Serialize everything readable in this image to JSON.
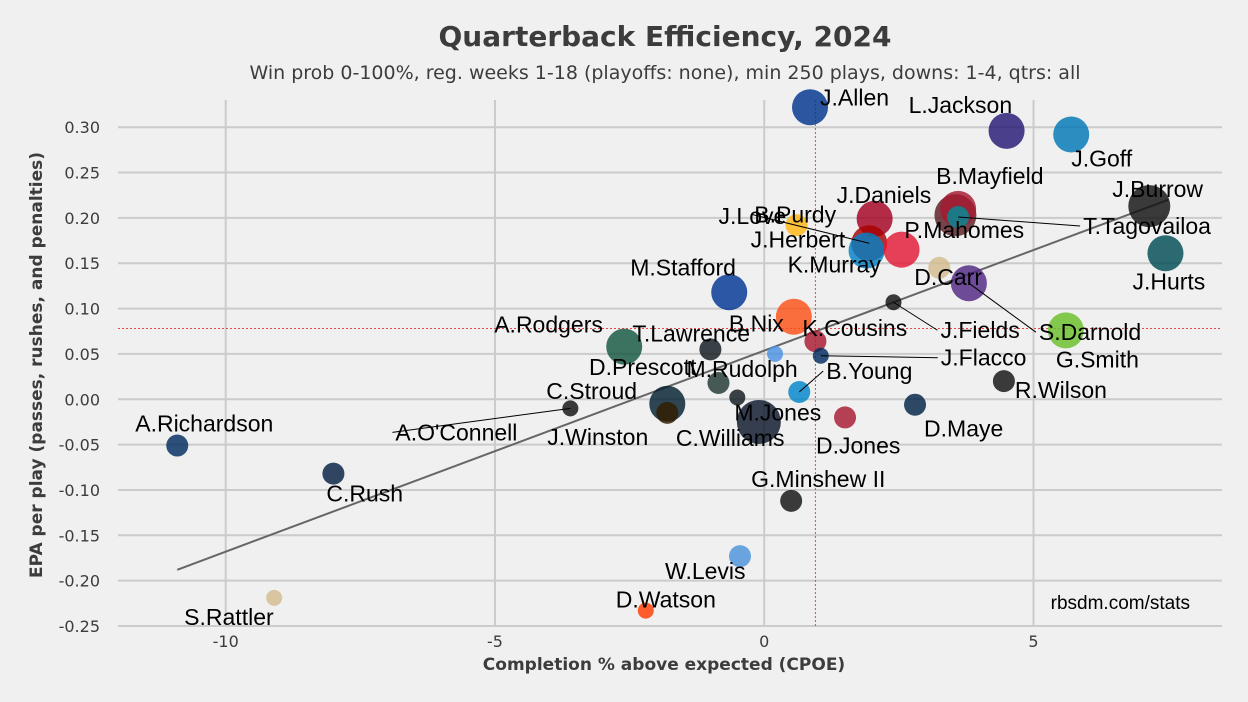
{
  "chart_data": {
    "type": "scatter",
    "title": "Quarterback Efficiency, 2024",
    "subtitle": "Win prob 0-100%, reg. weeks 1-18 (playoffs: none), min 250 plays, downs: 1-4, qtrs: all",
    "xlabel": "Completion % above expected (CPOE)",
    "ylabel": "EPA per play (passes, rushes, and penalties)",
    "xlim": [
      -12.0,
      8.5
    ],
    "ylim": [
      -0.25,
      0.33
    ],
    "xticks": [
      {
        "v": -10,
        "label": "-10"
      },
      {
        "v": -5,
        "label": "-5"
      },
      {
        "v": 0,
        "label": "0"
      },
      {
        "v": 5,
        "label": "5"
      }
    ],
    "yticks": [
      {
        "v": 0.3,
        "label": "0.30"
      },
      {
        "v": 0.25,
        "label": "0.25"
      },
      {
        "v": 0.2,
        "label": "0.20"
      },
      {
        "v": 0.15,
        "label": "0.15"
      },
      {
        "v": 0.1,
        "label": "0.10"
      },
      {
        "v": 0.05,
        "label": "0.05"
      },
      {
        "v": 0.0,
        "label": "0.00"
      },
      {
        "v": -0.05,
        "label": "-0.05"
      },
      {
        "v": -0.1,
        "label": "-0.10"
      },
      {
        "v": -0.15,
        "label": "-0.15"
      },
      {
        "v": -0.2,
        "label": "-0.20"
      },
      {
        "v": -0.25,
        "label": "-0.25"
      }
    ],
    "mean_x": 0.95,
    "mean_y": 0.078,
    "trend_line": {
      "x1": -10.9,
      "y1": -0.188,
      "x2": 7.5,
      "y2": 0.22
    },
    "credit": "rbsdm.com/stats",
    "points": [
      {
        "name": "J.Allen",
        "x": 0.85,
        "y": 0.322,
        "color": "#00338d"
      },
      {
        "name": "L.Jackson",
        "x": 4.5,
        "y": 0.296,
        "color": "#241773"
      },
      {
        "name": "J.Goff",
        "x": 5.7,
        "y": 0.292,
        "color": "#0076b6"
      },
      {
        "name": "J.Burrow",
        "x": 7.15,
        "y": 0.213,
        "color": "#111111"
      },
      {
        "name": "B.Mayfield",
        "x": 3.6,
        "y": 0.21,
        "color": "#a71930"
      },
      {
        "name": "T.Tagovailoa",
        "x": 3.6,
        "y": 0.201,
        "color": "#008e97"
      },
      {
        "name": "P.Mahomes",
        "x": 3.55,
        "y": 0.203,
        "color": "#5a1d22"
      },
      {
        "name": "J.Daniels",
        "x": 2.05,
        "y": 0.199,
        "color": "#a50021"
      },
      {
        "name": "B.Purdy",
        "x": 1.95,
        "y": 0.172,
        "color": "#aa0000"
      },
      {
        "name": "J.Love",
        "x": 0.6,
        "y": 0.192,
        "color": "#ffb612"
      },
      {
        "name": "J.Herbert",
        "x": 1.9,
        "y": 0.164,
        "color": "#0080c6"
      },
      {
        "name": "K.Murray",
        "x": 2.55,
        "y": 0.165,
        "color": "#e31837"
      },
      {
        "name": "D.Carr",
        "x": 3.25,
        "y": 0.145,
        "color": "#d3bc8d"
      },
      {
        "name": "J.Hurts",
        "x": 7.45,
        "y": 0.161,
        "color": "#004c54"
      },
      {
        "name": "S.Darnold",
        "x": 3.8,
        "y": 0.128,
        "color": "#4f2683"
      },
      {
        "name": "M.Stafford",
        "x": -0.65,
        "y": 0.118,
        "color": "#003594"
      },
      {
        "name": "J.Fields",
        "x": 2.4,
        "y": 0.107,
        "color": "#111111"
      },
      {
        "name": "B.Nix",
        "x": 0.55,
        "y": 0.091,
        "color": "#fb4f14"
      },
      {
        "name": "G.Smith",
        "x": 5.6,
        "y": 0.076,
        "color": "#69be28"
      },
      {
        "name": "K.Cousins",
        "x": 0.95,
        "y": 0.064,
        "color": "#a71930"
      },
      {
        "name": "A.Rodgers",
        "x": -2.6,
        "y": 0.058,
        "color": "#125740"
      },
      {
        "name": "T.Lawrence",
        "x": -1.0,
        "y": 0.055,
        "color": "#101820"
      },
      {
        "name": "D.Prescott",
        "x": 0.2,
        "y": 0.05,
        "color": "#4a90e2"
      },
      {
        "name": "J.Flacco",
        "x": 1.05,
        "y": 0.048,
        "color": "#002c5f"
      },
      {
        "name": "M.Rudolph",
        "x": -0.85,
        "y": 0.018,
        "color": "#203731"
      },
      {
        "name": "R.Wilson",
        "x": 4.45,
        "y": 0.02,
        "color": "#111111"
      },
      {
        "name": "B.Young",
        "x": 0.65,
        "y": 0.008,
        "color": "#0085ca"
      },
      {
        "name": "C.Stroud",
        "x": -1.8,
        "y": -0.005,
        "color": "#03202f"
      },
      {
        "name": "A.O'Connell",
        "x": -3.6,
        "y": -0.01,
        "color": "#111111"
      },
      {
        "name": "J.Winston",
        "x": -1.8,
        "y": -0.015,
        "color": "#311d00"
      },
      {
        "name": "D.Maye",
        "x": 2.8,
        "y": -0.006,
        "color": "#002244"
      },
      {
        "name": "M.Jones",
        "x": -0.5,
        "y": 0.002,
        "color": "#101820"
      },
      {
        "name": "C.Williams",
        "x": -0.1,
        "y": -0.025,
        "color": "#0b162a"
      },
      {
        "name": "D.Jones",
        "x": 1.5,
        "y": -0.02,
        "color": "#a71930"
      },
      {
        "name": "A.Richardson",
        "x": -10.9,
        "y": -0.051,
        "color": "#002c5f"
      },
      {
        "name": "C.Rush",
        "x": -8.0,
        "y": -0.082,
        "color": "#041e42"
      },
      {
        "name": "G.Minshew II",
        "x": 0.5,
        "y": -0.112,
        "color": "#111111"
      },
      {
        "name": "W.Levis",
        "x": -0.45,
        "y": -0.173,
        "color": "#4b92db"
      },
      {
        "name": "S.Rattler",
        "x": -9.1,
        "y": -0.219,
        "color": "#d3bc8d"
      },
      {
        "name": "D.Watson",
        "x": -2.2,
        "y": -0.233,
        "color": "#ff3c00"
      }
    ]
  }
}
